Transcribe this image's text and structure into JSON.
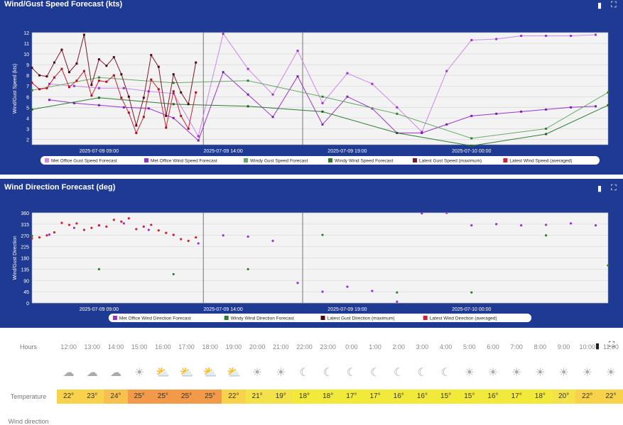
{
  "panel1": {
    "title": "Wind/Gust Speed Forecast (kts)",
    "export_icon": "file-icon",
    "fullscreen_icon": "expand-icon"
  },
  "panel2": {
    "title": "Wind Direction Forecast (deg)",
    "export_icon": "file-icon",
    "fullscreen_icon": "expand-icon"
  },
  "chart_data": [
    {
      "type": "line",
      "title": "Wind/Gust Speed Forecast (kts)",
      "ylabel": "Wind/Gust Speed (kts)",
      "ylim": [
        1.5,
        12
      ],
      "yticks": [
        2,
        3,
        4,
        5,
        6,
        7,
        8,
        9,
        10,
        11,
        12
      ],
      "x_ticks": [
        "2025-07-09 09:00",
        "2025-07-09 14:00",
        "2025-07-09 19:00",
        "2025-07-10 00:00"
      ],
      "x_range_hours": [
        6.3,
        29.5
      ],
      "series": [
        {
          "name": "Met Office Gust Speed Forecast",
          "color": "#cc88ee",
          "marker": "#9933cc",
          "x": [
            7,
            8,
            9,
            10,
            11,
            12,
            13,
            14,
            15,
            16,
            17,
            18,
            19,
            20,
            21,
            22,
            23,
            24,
            25,
            26,
            27,
            28,
            29
          ],
          "values": [
            7.2,
            7.0,
            6.8,
            6.8,
            6.5,
            6.3,
            2.3,
            11.9,
            8.6,
            6.2,
            10.3,
            5.4,
            8.2,
            7.2,
            5.0,
            2.7,
            8.4,
            11.3,
            11.4,
            11.7,
            11.7,
            11.7,
            11.8
          ]
        },
        {
          "name": "Met Office Wind Speed Forecast",
          "color": "#9933cc",
          "marker": "#7722aa",
          "x": [
            7,
            8,
            9,
            10,
            11,
            12,
            13,
            14,
            15,
            16,
            17,
            18,
            19,
            20,
            21,
            22,
            23,
            24,
            25,
            26,
            27,
            28,
            29
          ],
          "values": [
            5.7,
            5.4,
            5.2,
            5.0,
            4.9,
            4.0,
            1.9,
            8.3,
            6.2,
            4.1,
            7.9,
            3.4,
            6.0,
            4.9,
            2.6,
            2.6,
            3.4,
            4.2,
            4.4,
            4.6,
            4.8,
            5.0,
            5.1
          ]
        },
        {
          "name": "Windy Gust Speed Forecast",
          "color": "#66aa66",
          "marker": "#2e7d32",
          "x": [
            6.3,
            9,
            12,
            15,
            18,
            21,
            24,
            27,
            29.5
          ],
          "values": [
            6.6,
            7.8,
            7.3,
            7.5,
            6.0,
            4.4,
            2.1,
            3.0,
            6.4
          ]
        },
        {
          "name": "Windy Wind Speed Forecast",
          "color": "#2e7d32",
          "marker": "#1b5e20",
          "x": [
            6.3,
            9,
            12,
            15,
            18,
            21,
            24,
            27,
            29.5
          ],
          "values": [
            4.8,
            5.9,
            5.3,
            5.1,
            4.6,
            2.6,
            1.4,
            2.5,
            5.2
          ]
        },
        {
          "name": "Latest Gust Speed (maximum)",
          "color": "#7a1a2a",
          "marker": "#4a0a14",
          "x": [
            6.3,
            6.6,
            6.9,
            7.2,
            7.5,
            7.8,
            8.1,
            8.4,
            8.7,
            9.0,
            9.3,
            9.6,
            9.9,
            10.2,
            10.5,
            10.8,
            11.1,
            11.4,
            11.7,
            12.0,
            12.3,
            12.6,
            12.9
          ],
          "values": [
            8.7,
            8.0,
            7.9,
            9.2,
            10.4,
            8.3,
            9.1,
            11.8,
            7.1,
            9.5,
            8.9,
            9.7,
            8.1,
            6.0,
            3.3,
            5.9,
            9.9,
            8.8,
            4.2,
            8.1,
            6.4,
            5.3,
            9.2
          ]
        },
        {
          "name": "Latest Wind Speed (averaged)",
          "color": "#cc2233",
          "marker": "#aa1122",
          "x": [
            6.3,
            6.6,
            6.9,
            7.2,
            7.5,
            7.8,
            8.1,
            8.4,
            8.7,
            9.0,
            9.3,
            9.6,
            9.9,
            10.2,
            10.5,
            10.8,
            11.1,
            11.4,
            11.7,
            12.0,
            12.3,
            12.6,
            12.9
          ],
          "values": [
            7.3,
            6.7,
            6.8,
            7.8,
            8.6,
            6.9,
            7.5,
            8.4,
            6.1,
            7.5,
            7.4,
            8.0,
            5.9,
            4.5,
            2.6,
            4.1,
            7.6,
            6.7,
            3.1,
            6.5,
            4.2,
            3.0,
            6.4
          ]
        }
      ]
    },
    {
      "type": "scatter",
      "title": "Wind Direction Forecast (deg)",
      "ylabel": "Wind/Gust Direction",
      "ylim": [
        0,
        360
      ],
      "yticks": [
        0,
        45,
        90,
        135,
        180,
        225,
        270,
        315,
        360
      ],
      "x_ticks": [
        "2025-07-09 09:00",
        "2025-07-09 14:00",
        "2025-07-09 19:00",
        "2025-07-10 00:00"
      ],
      "x_range_hours": [
        6.3,
        29.5
      ],
      "series": [
        {
          "name": "Met Office Wind Direction Forecast",
          "color": "#9933cc",
          "x": [
            7,
            8,
            9,
            10,
            11,
            12,
            13,
            14,
            15,
            16,
            17,
            18,
            19,
            20,
            21,
            22,
            23,
            24,
            25,
            26,
            27,
            28,
            29
          ],
          "values": [
            273,
            300,
            310,
            318,
            292,
            272,
            238,
            270,
            265,
            248,
            80,
            45,
            65,
            48,
            5,
            358,
            360,
            310,
            315,
            310,
            312,
            318,
            310
          ]
        },
        {
          "name": "Windy Wind Direction Forecast",
          "color": "#2e7d32",
          "x": [
            6.3,
            9,
            12,
            15,
            18,
            21,
            24,
            27,
            29.5
          ],
          "values": [
            268,
            135,
            115,
            135,
            272,
            42,
            42,
            270,
            150
          ]
        },
        {
          "name": "Latest Gust Direction (maximum)",
          "color": "#4a0a14",
          "x": [],
          "values": []
        },
        {
          "name": "Latest Wind Direction (averaged)",
          "color": "#cc2233",
          "x": [
            6.3,
            6.6,
            6.9,
            7.2,
            7.5,
            7.8,
            8.1,
            8.4,
            8.7,
            9.0,
            9.3,
            9.6,
            9.9,
            10.2,
            10.5,
            10.8,
            11.1,
            11.4,
            11.7,
            12.0,
            12.3,
            12.6,
            12.9
          ],
          "values": [
            258,
            262,
            270,
            282,
            320,
            312,
            318,
            292,
            300,
            310,
            305,
            332,
            325,
            338,
            295,
            305,
            312,
            290,
            280,
            272,
            255,
            248,
            262
          ]
        }
      ]
    }
  ],
  "forecast": {
    "hours_label": "Hours",
    "temperature_label": "Temperature",
    "wind_direction_label": "Wind direction",
    "hours": [
      "12:00",
      "13:00",
      "14:00",
      "15:00",
      "16:00",
      "17:00",
      "18:00",
      "19:00",
      "20:00",
      "21:00",
      "22:00",
      "23:00",
      "0:00",
      "1:00",
      "2:00",
      "3:00",
      "4:00",
      "5:00",
      "6:00",
      "7:00",
      "8:00",
      "9:00",
      "10:00",
      "11:00"
    ],
    "icons": [
      "cloud-icon",
      "cloud-icon",
      "cloud-icon",
      "sun-icon",
      "sun-cloud-icon",
      "sun-cloud-icon",
      "sun-cloud-icon",
      "sun-cloud-icon",
      "sun-icon",
      "sun-icon",
      "moon-icon",
      "moon-icon",
      "moon-icon",
      "moon-icon",
      "moon-icon",
      "moon-icon",
      "moon-icon",
      "sun-icon",
      "sun-icon",
      "sun-icon",
      "sun-icon",
      "sun-icon",
      "sun-icon",
      "sun-icon"
    ],
    "temperatures": [
      "22°",
      "23°",
      "24°",
      "25°",
      "25°",
      "25°",
      "25°",
      "22°",
      "21°",
      "19°",
      "18°",
      "18°",
      "17°",
      "17°",
      "16°",
      "16°",
      "15°",
      "15°",
      "16°",
      "17°",
      "18°",
      "20°",
      "22°",
      "22°"
    ],
    "temperature_values": [
      22,
      23,
      24,
      25,
      25,
      25,
      25,
      22,
      21,
      19,
      18,
      18,
      17,
      17,
      16,
      16,
      15,
      15,
      16,
      17,
      18,
      20,
      22,
      22
    ]
  }
}
